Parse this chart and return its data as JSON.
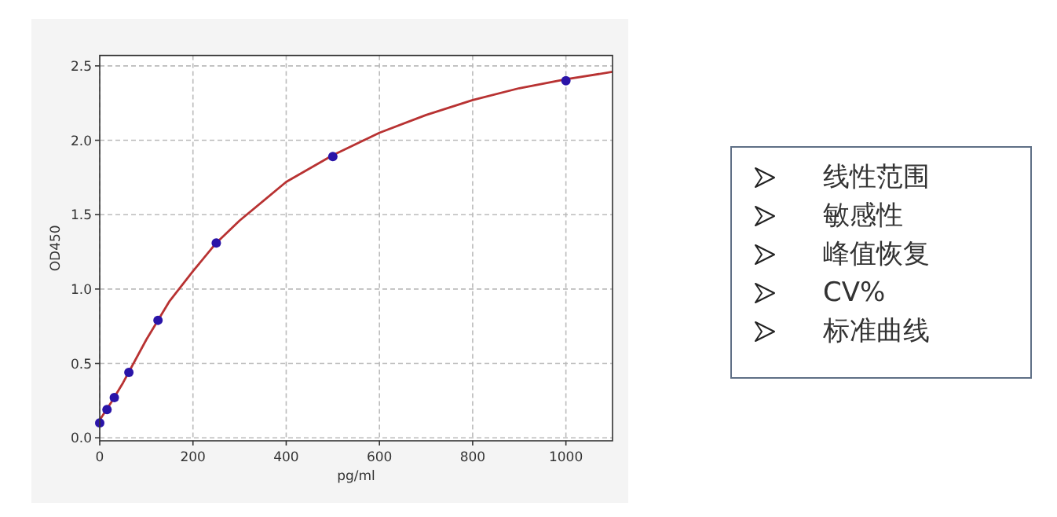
{
  "chart_data": [
    {
      "type": "scatter",
      "xlabel": "pg/ml",
      "ylabel": "OD450",
      "xlim": [
        0,
        1100
      ],
      "ylim": [
        -0.02,
        2.57
      ],
      "xticks": [
        0,
        200,
        400,
        600,
        800,
        1000
      ],
      "yticks": [
        {
          "value": 0,
          "label": "0.0"
        },
        0.5,
        {
          "value": 1,
          "label": "1.0"
        },
        1.5,
        {
          "value": 2,
          "label": "2.0"
        },
        2.5
      ],
      "grid": true,
      "series": [
        {
          "type": "line",
          "color": "#b83232",
          "x": [
            0,
            25,
            50,
            100,
            150,
            200,
            250,
            300,
            400,
            500,
            600,
            700,
            800,
            900,
            1000,
            1100
          ],
          "values": [
            0.12,
            0.24,
            0.37,
            0.66,
            0.92,
            1.12,
            1.31,
            1.46,
            1.72,
            1.9,
            2.05,
            2.17,
            2.27,
            2.35,
            2.41,
            2.46
          ]
        },
        {
          "type": "scatter",
          "color": "#2a14a8",
          "marker": "circle",
          "x": [
            0,
            15.6,
            31.25,
            62.5,
            125,
            250,
            500,
            1000
          ],
          "values": [
            0.1,
            0.19,
            0.27,
            0.44,
            0.79,
            1.31,
            1.89,
            2.4
          ]
        }
      ]
    },
    {
      "type": "other",
      "annotations": [
        "线性范围",
        "敏感性",
        "峰值恢复",
        "CV%",
        "标准曲线"
      ]
    }
  ]
}
